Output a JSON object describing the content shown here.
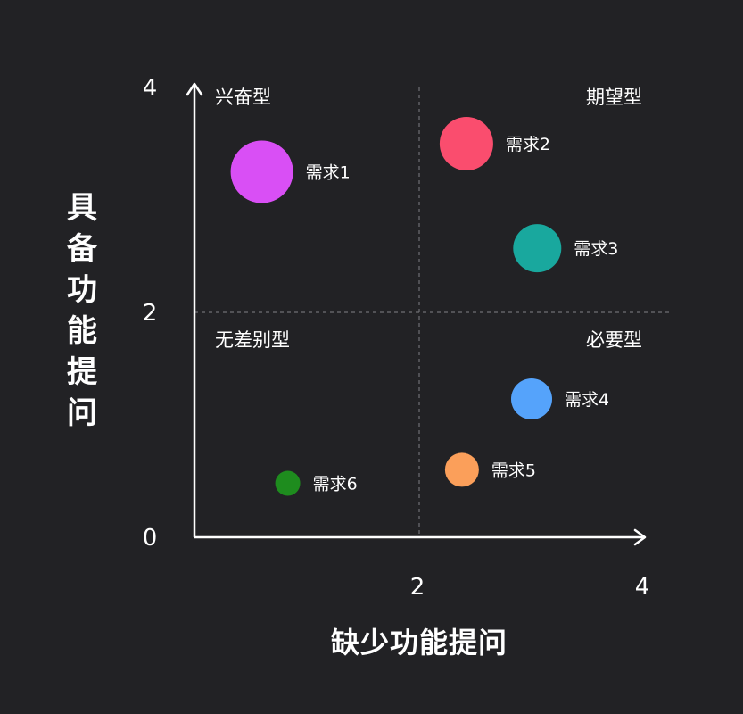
{
  "chart_data": {
    "type": "scatter",
    "xlabel": "缺少功能提问",
    "ylabel": "具备功能提问",
    "xlim": [
      0,
      4
    ],
    "ylim": [
      0,
      4
    ],
    "x_ticks": [
      "2",
      "4"
    ],
    "y_ticks": [
      "0",
      "2",
      "4"
    ],
    "quadrant_dividers": {
      "x": 2,
      "y": 2
    },
    "quadrants": {
      "top_left": "兴奋型",
      "top_right": "期望型",
      "bottom_left": "无差别型",
      "bottom_right": "必要型"
    },
    "points": [
      {
        "name": "需求1",
        "x": 0.6,
        "y": 3.25,
        "size": 3.5,
        "color": "#d94ff5"
      },
      {
        "name": "需求2",
        "x": 2.42,
        "y": 3.5,
        "size": 3.0,
        "color": "#fa4d6e"
      },
      {
        "name": "需求3",
        "x": 3.05,
        "y": 2.57,
        "size": 2.7,
        "color": "#19a89e"
      },
      {
        "name": "需求4",
        "x": 3.0,
        "y": 1.23,
        "size": 2.3,
        "color": "#55a3fb"
      },
      {
        "name": "需求5",
        "x": 2.38,
        "y": 0.6,
        "size": 1.9,
        "color": "#fb9f5a"
      },
      {
        "name": "需求6",
        "x": 0.83,
        "y": 0.48,
        "size": 1.4,
        "color": "#1e8c1e"
      }
    ],
    "grid": false,
    "legend": "none"
  },
  "colors": {
    "background": "#222225",
    "axis": "#ffffff",
    "divider": "#6f6f75",
    "text": "#ffffff"
  }
}
